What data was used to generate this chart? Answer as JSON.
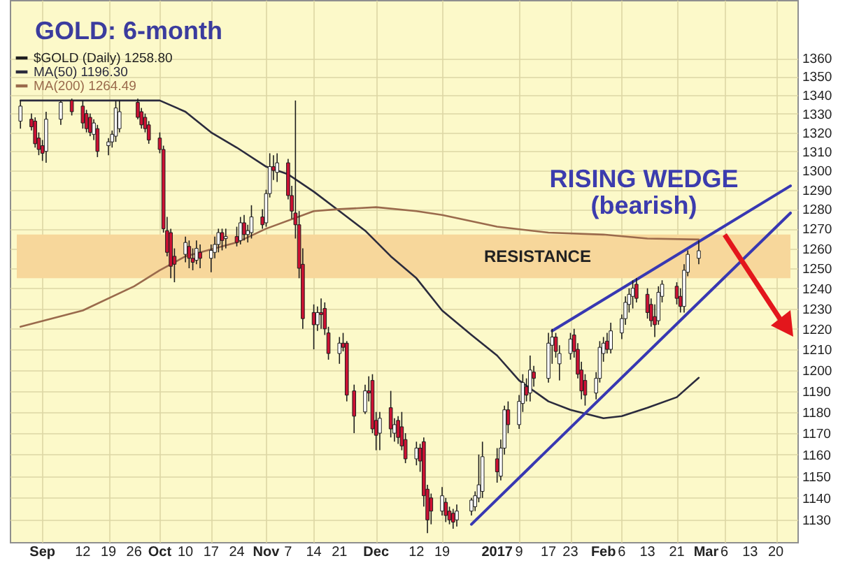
{
  "chart_data": {
    "type": "candlestick",
    "title": "GOLD: 6-month",
    "xlim": [
      "2016-08-25",
      "2017-03-24"
    ],
    "xticks": [
      {
        "value": "2016-09-01",
        "label": "Sep"
      },
      {
        "value": "2016-09-12",
        "label": "12"
      },
      {
        "value": "2016-09-19",
        "label": "19"
      },
      {
        "value": "2016-09-26",
        "label": "26"
      },
      {
        "value": "2016-10-03",
        "label": "Oct"
      },
      {
        "value": "2016-10-10",
        "label": "10"
      },
      {
        "value": "2016-10-17",
        "label": "17"
      },
      {
        "value": "2016-10-24",
        "label": "24"
      },
      {
        "value": "2016-11-01",
        "label": "Nov"
      },
      {
        "value": "2016-11-07",
        "label": "7"
      },
      {
        "value": "2016-11-14",
        "label": "14"
      },
      {
        "value": "2016-11-21",
        "label": "21"
      },
      {
        "value": "2016-12-01",
        "label": "Dec"
      },
      {
        "value": "2016-12-12",
        "label": "12"
      },
      {
        "value": "2016-12-19",
        "label": "19"
      },
      {
        "value": "2017-01-03",
        "label": "2017"
      },
      {
        "value": "2017-01-09",
        "label": "9"
      },
      {
        "value": "2017-01-17",
        "label": "17"
      },
      {
        "value": "2017-01-23",
        "label": "23"
      },
      {
        "value": "2017-02-01",
        "label": "Feb"
      },
      {
        "value": "2017-02-06",
        "label": "6"
      },
      {
        "value": "2017-02-13",
        "label": "13"
      },
      {
        "value": "2017-02-21",
        "label": "21"
      },
      {
        "value": "2017-03-01",
        "label": "Mar"
      },
      {
        "value": "2017-03-06",
        "label": "6"
      },
      {
        "value": "2017-03-13",
        "label": "13"
      },
      {
        "value": "2017-03-20",
        "label": "20"
      }
    ],
    "ylim": [
      1120,
      1392
    ],
    "yticks": [
      1130,
      1140,
      1150,
      1160,
      1170,
      1180,
      1190,
      1200,
      1210,
      1220,
      1230,
      1240,
      1250,
      1260,
      1270,
      1280,
      1290,
      1300,
      1310,
      1320,
      1330,
      1340,
      1350,
      1360
    ],
    "log": true,
    "grid": true,
    "legend": "top left",
    "bands": [
      {
        "axis": "y",
        "from": 1245,
        "to": 1267,
        "label": "RESISTANCE",
        "color": "#f7d79b"
      }
    ],
    "annotations": [
      "RISING WEDGE",
      "(bearish)"
    ],
    "series": [
      {
        "name": "$GOLD (Daily) 1258.80",
        "color": "#1e1e1e",
        "x": [
          "2016-08-26",
          "2016-08-29",
          "2016-08-30",
          "2016-08-31",
          "2016-09-01",
          "2016-09-02",
          "2016-09-06",
          "2016-09-09",
          "2016-09-12",
          "2016-09-13",
          "2016-09-14",
          "2016-09-15",
          "2016-09-16",
          "2016-09-19",
          "2016-09-20",
          "2016-09-21",
          "2016-09-22",
          "2016-09-27",
          "2016-09-28",
          "2016-09-29",
          "2016-09-30",
          "2016-10-03",
          "2016-10-04",
          "2016-10-05",
          "2016-10-06",
          "2016-10-07",
          "2016-10-10",
          "2016-10-11",
          "2016-10-12",
          "2016-10-13",
          "2016-10-14",
          "2016-10-17",
          "2016-10-18",
          "2016-10-19",
          "2016-10-20",
          "2016-10-21",
          "2016-10-24",
          "2016-10-25",
          "2016-10-26",
          "2016-10-27",
          "2016-10-28",
          "2016-10-31",
          "2016-11-01",
          "2016-11-02",
          "2016-11-03",
          "2016-11-04",
          "2016-11-07",
          "2016-11-08",
          "2016-11-09",
          "2016-11-10",
          "2016-11-11",
          "2016-11-14",
          "2016-11-15",
          "2016-11-16",
          "2016-11-17",
          "2016-11-18",
          "2016-11-21",
          "2016-11-22",
          "2016-11-23",
          "2016-11-25",
          "2016-11-28",
          "2016-11-29",
          "2016-11-30",
          "2016-12-01",
          "2016-12-02",
          "2016-12-05",
          "2016-12-06",
          "2016-12-07",
          "2016-12-08",
          "2016-12-09",
          "2016-12-12",
          "2016-12-13",
          "2016-12-14",
          "2016-12-15",
          "2016-12-16",
          "2016-12-19",
          "2016-12-20",
          "2016-12-21",
          "2016-12-22",
          "2016-12-23",
          "2016-12-27",
          "2016-12-28",
          "2016-12-29",
          "2016-12-30",
          "2017-01-03",
          "2017-01-04",
          "2017-01-05",
          "2017-01-06",
          "2017-01-09",
          "2017-01-10",
          "2017-01-11",
          "2017-01-12",
          "2017-01-13",
          "2017-01-17",
          "2017-01-18",
          "2017-01-19",
          "2017-01-20",
          "2017-01-23",
          "2017-01-24",
          "2017-01-25",
          "2017-01-26",
          "2017-01-27",
          "2017-01-30",
          "2017-01-31",
          "2017-02-01",
          "2017-02-02",
          "2017-02-03",
          "2017-02-06",
          "2017-02-07",
          "2017-02-08",
          "2017-02-09",
          "2017-02-10",
          "2017-02-13",
          "2017-02-14",
          "2017-02-15",
          "2017-02-16",
          "2017-02-17",
          "2017-02-21",
          "2017-02-22",
          "2017-02-23",
          "2017-02-24",
          "2017-02-27"
        ],
        "ohlc": [
          [
            1326,
            1337,
            1322,
            1334
          ],
          [
            1327,
            1330,
            1321,
            1323
          ],
          [
            1326,
            1328,
            1312,
            1314
          ],
          [
            1317,
            1320,
            1308,
            1311
          ],
          [
            1313,
            1316,
            1305,
            1309
          ],
          [
            1310,
            1331,
            1304,
            1327
          ],
          [
            1327,
            1337,
            1324,
            1336
          ],
          [
            1337,
            1338,
            1329,
            1331
          ],
          [
            1334,
            1337,
            1322,
            1325
          ],
          [
            1330,
            1332,
            1320,
            1322
          ],
          [
            1328,
            1330,
            1318,
            1320
          ],
          [
            1319,
            1327,
            1316,
            1325
          ],
          [
            1322,
            1324,
            1307,
            1310
          ],
          [
            1313,
            1317,
            1308,
            1315
          ],
          [
            1315,
            1321,
            1312,
            1319
          ],
          [
            1318,
            1337,
            1315,
            1333
          ],
          [
            1322,
            1337,
            1320,
            1331
          ],
          [
            1336,
            1338,
            1327,
            1328
          ],
          [
            1331,
            1333,
            1322,
            1324
          ],
          [
            1328,
            1330,
            1320,
            1322
          ],
          [
            1324,
            1326,
            1314,
            1316
          ],
          [
            1317,
            1320,
            1309,
            1311
          ],
          [
            1311,
            1313,
            1268,
            1270
          ],
          [
            1269,
            1276,
            1256,
            1258
          ],
          [
            1268,
            1270,
            1245,
            1251
          ],
          [
            1256,
            1260,
            1243,
            1252
          ],
          [
            1257,
            1266,
            1253,
            1263
          ],
          [
            1261,
            1264,
            1250,
            1255
          ],
          [
            1255,
            1260,
            1249,
            1253
          ],
          [
            1254,
            1264,
            1252,
            1260
          ],
          [
            1258,
            1262,
            1250,
            1255
          ],
          [
            1255,
            1262,
            1248,
            1259
          ],
          [
            1258,
            1266,
            1255,
            1262
          ],
          [
            1262,
            1270,
            1258,
            1268
          ],
          [
            1268,
            1270,
            1259,
            1264
          ],
          [
            1265,
            1270,
            1260,
            1266
          ],
          [
            1266,
            1271,
            1261,
            1263
          ],
          [
            1264,
            1276,
            1262,
            1273
          ],
          [
            1273,
            1277,
            1264,
            1267
          ],
          [
            1267,
            1272,
            1263,
            1269
          ],
          [
            1268,
            1282,
            1265,
            1276
          ],
          [
            1276,
            1280,
            1270,
            1272
          ],
          [
            1273,
            1290,
            1271,
            1288
          ],
          [
            1288,
            1309,
            1286,
            1302
          ],
          [
            1302,
            1308,
            1295,
            1300
          ],
          [
            1299,
            1309,
            1294,
            1304
          ],
          [
            1304,
            1306,
            1285,
            1287
          ],
          [
            1287,
            1292,
            1275,
            1279
          ],
          [
            1278,
            1337,
            1265,
            1272
          ],
          [
            1272,
            1279,
            1245,
            1250
          ],
          [
            1252,
            1260,
            1220,
            1225
          ],
          [
            1228,
            1232,
            1210,
            1222
          ],
          [
            1222,
            1231,
            1219,
            1228
          ],
          [
            1228,
            1235,
            1220,
            1227
          ],
          [
            1230,
            1233,
            1217,
            1220
          ],
          [
            1218,
            1221,
            1205,
            1208
          ],
          [
            1208,
            1216,
            1203,
            1213
          ],
          [
            1213,
            1218,
            1209,
            1211
          ],
          [
            1213,
            1214,
            1185,
            1188
          ],
          [
            1190,
            1193,
            1170,
            1178
          ],
          [
            1180,
            1193,
            1179,
            1190
          ],
          [
            1190,
            1197,
            1185,
            1189
          ],
          [
            1195,
            1198,
            1170,
            1172
          ],
          [
            1176,
            1180,
            1162,
            1169
          ],
          [
            1170,
            1180,
            1162,
            1177
          ],
          [
            1182,
            1190,
            1168,
            1172
          ],
          [
            1170,
            1177,
            1166,
            1174
          ],
          [
            1176,
            1178,
            1165,
            1168
          ],
          [
            1173,
            1180,
            1162,
            1164
          ],
          [
            1167,
            1170,
            1156,
            1158
          ],
          [
            1158,
            1166,
            1155,
            1163
          ],
          [
            1163,
            1165,
            1152,
            1157
          ],
          [
            1166,
            1168,
            1136,
            1141
          ],
          [
            1144,
            1146,
            1124,
            1130
          ],
          [
            1140,
            1142,
            1128,
            1134
          ],
          [
            1134,
            1145,
            1132,
            1141
          ],
          [
            1138,
            1140,
            1129,
            1132
          ],
          [
            1134,
            1136,
            1128,
            1130
          ],
          [
            1133,
            1135,
            1126,
            1129
          ],
          [
            1130,
            1137,
            1127,
            1134
          ],
          [
            1134,
            1140,
            1132,
            1139
          ],
          [
            1136,
            1143,
            1134,
            1141
          ],
          [
            1140,
            1160,
            1138,
            1146
          ],
          [
            1143,
            1166,
            1140,
            1159
          ],
          [
            1158,
            1163,
            1147,
            1152
          ],
          [
            1150,
            1167,
            1148,
            1163
          ],
          [
            1163,
            1183,
            1160,
            1181
          ],
          [
            1181,
            1185,
            1170,
            1174
          ],
          [
            1174,
            1188,
            1172,
            1185
          ],
          [
            1184,
            1198,
            1180,
            1194
          ],
          [
            1192,
            1196,
            1185,
            1188
          ],
          [
            1189,
            1207,
            1185,
            1200
          ],
          [
            1199,
            1202,
            1192,
            1196
          ],
          [
            1196,
            1218,
            1194,
            1213
          ],
          [
            1212,
            1220,
            1203,
            1216
          ],
          [
            1216,
            1218,
            1206,
            1209
          ],
          [
            1203,
            1212,
            1195,
            1208
          ],
          [
            1208,
            1218,
            1205,
            1215
          ],
          [
            1217,
            1220,
            1206,
            1209
          ],
          [
            1210,
            1213,
            1196,
            1198
          ],
          [
            1200,
            1204,
            1186,
            1190
          ],
          [
            1195,
            1198,
            1183,
            1188
          ],
          [
            1189,
            1199,
            1186,
            1196
          ],
          [
            1196,
            1214,
            1194,
            1211
          ],
          [
            1208,
            1216,
            1204,
            1213
          ],
          [
            1214,
            1218,
            1208,
            1210
          ],
          [
            1210,
            1223,
            1208,
            1219
          ],
          [
            1218,
            1227,
            1215,
            1225
          ],
          [
            1225,
            1236,
            1222,
            1233
          ],
          [
            1232,
            1240,
            1228,
            1237
          ],
          [
            1236,
            1244,
            1230,
            1240
          ],
          [
            1242,
            1245,
            1233,
            1235
          ],
          [
            1237,
            1240,
            1225,
            1228
          ],
          [
            1232,
            1235,
            1221,
            1224
          ],
          [
            1226,
            1232,
            1216,
            1222
          ],
          [
            1224,
            1241,
            1222,
            1238
          ],
          [
            1236,
            1244,
            1233,
            1242
          ],
          [
            1241,
            1243,
            1232,
            1235
          ],
          [
            1236,
            1240,
            1228,
            1231
          ],
          [
            1231,
            1252,
            1228,
            1249
          ],
          [
            1248,
            1259,
            1246,
            1257
          ],
          [
            1255,
            1264,
            1252,
            1258.8
          ]
        ],
        "colors": [
          "#ffffff",
          "#cc1133",
          "#cc1133",
          "#cc1133",
          "#cc1133",
          "#ffffff",
          "#ffffff",
          "#cc1133",
          "#cc1133",
          "#cc1133",
          "#cc1133",
          "#ffffff",
          "#cc1133",
          "#ffffff",
          "#ffffff",
          "#ffffff",
          "#ffffff",
          "#cc1133",
          "#cc1133",
          "#cc1133",
          "#cc1133",
          "#cc1133",
          "#cc1133",
          "#cc1133",
          "#cc1133",
          "#cc1133",
          "#ffffff",
          "#cc1133",
          "#cc1133",
          "#ffffff",
          "#cc1133",
          "#ffffff",
          "#ffffff",
          "#ffffff",
          "#cc1133",
          "#ffffff",
          "#cc1133",
          "#ffffff",
          "#cc1133",
          "#ffffff",
          "#ffffff",
          "#cc1133",
          "#ffffff",
          "#ffffff",
          "#cc1133",
          "#ffffff",
          "#cc1133",
          "#cc1133",
          "#cc1133",
          "#cc1133",
          "#cc1133",
          "#cc1133",
          "#ffffff",
          "#cc1133",
          "#cc1133",
          "#cc1133",
          "#ffffff",
          "#cc1133",
          "#cc1133",
          "#cc1133",
          "#ffffff",
          "#cc1133",
          "#cc1133",
          "#cc1133",
          "#ffffff",
          "#cc1133",
          "#ffffff",
          "#cc1133",
          "#cc1133",
          "#cc1133",
          "#ffffff",
          "#cc1133",
          "#cc1133",
          "#cc1133",
          "#cc1133",
          "#ffffff",
          "#cc1133",
          "#cc1133",
          "#cc1133",
          "#ffffff",
          "#ffffff",
          "#ffffff",
          "#ffffff",
          "#ffffff",
          "#cc1133",
          "#ffffff",
          "#ffffff",
          "#cc1133",
          "#ffffff",
          "#ffffff",
          "#cc1133",
          "#ffffff",
          "#cc1133",
          "#ffffff",
          "#ffffff",
          "#cc1133",
          "#ffffff",
          "#ffffff",
          "#cc1133",
          "#cc1133",
          "#cc1133",
          "#cc1133",
          "#ffffff",
          "#ffffff",
          "#ffffff",
          "#cc1133",
          "#ffffff",
          "#ffffff",
          "#ffffff",
          "#ffffff",
          "#ffffff",
          "#cc1133",
          "#cc1133",
          "#cc1133",
          "#cc1133",
          "#ffffff",
          "#ffffff",
          "#cc1133",
          "#cc1133",
          "#ffffff",
          "#ffffff",
          "#ffffff"
        ]
      },
      {
        "name": "MA(50) 1196.30",
        "type": "line",
        "color": "#2b2b3d",
        "x": [
          "2016-08-26",
          "2016-09-12",
          "2016-09-26",
          "2016-10-03",
          "2016-10-10",
          "2016-10-17",
          "2016-10-24",
          "2016-11-01",
          "2016-11-07",
          "2016-11-14",
          "2016-11-21",
          "2016-11-28",
          "2016-12-05",
          "2016-12-12",
          "2016-12-19",
          "2016-12-27",
          "2017-01-03",
          "2017-01-09",
          "2017-01-17",
          "2017-01-23",
          "2017-02-01",
          "2017-02-06",
          "2017-02-13",
          "2017-02-21",
          "2017-02-27"
        ],
        "values": [
          1337,
          1337,
          1337,
          1337,
          1331,
          1320,
          1312,
          1302,
          1298,
          1289,
          1279,
          1269,
          1256,
          1245,
          1229,
          1217,
          1207,
          1195,
          1185,
          1181,
          1177,
          1178,
          1182,
          1187,
          1196.3
        ]
      },
      {
        "name": "MA(200) 1264.49",
        "type": "line",
        "color": "#9a6a4c",
        "x": [
          "2016-08-26",
          "2016-09-12",
          "2016-09-26",
          "2016-10-03",
          "2016-10-10",
          "2016-10-24",
          "2016-11-01",
          "2016-11-14",
          "2016-11-21",
          "2016-12-01",
          "2016-12-12",
          "2016-12-19",
          "2017-01-03",
          "2017-01-17",
          "2017-02-01",
          "2017-02-13",
          "2017-02-27"
        ],
        "values": [
          1221,
          1229,
          1241,
          1249,
          1256,
          1263,
          1270,
          1279,
          1280,
          1281,
          1279,
          1277,
          1271,
          1268,
          1267,
          1265,
          1264.49
        ]
      },
      {
        "type": "line",
        "color": "#3838b2",
        "x": [
          "2017-01-18",
          "2017-03-24"
        ],
        "values": [
          1219,
          1292
        ]
      },
      {
        "type": "line",
        "color": "#3838b2",
        "x": [
          "2016-12-27",
          "2017-03-24"
        ],
        "values": [
          1128,
          1278
        ]
      }
    ]
  }
}
